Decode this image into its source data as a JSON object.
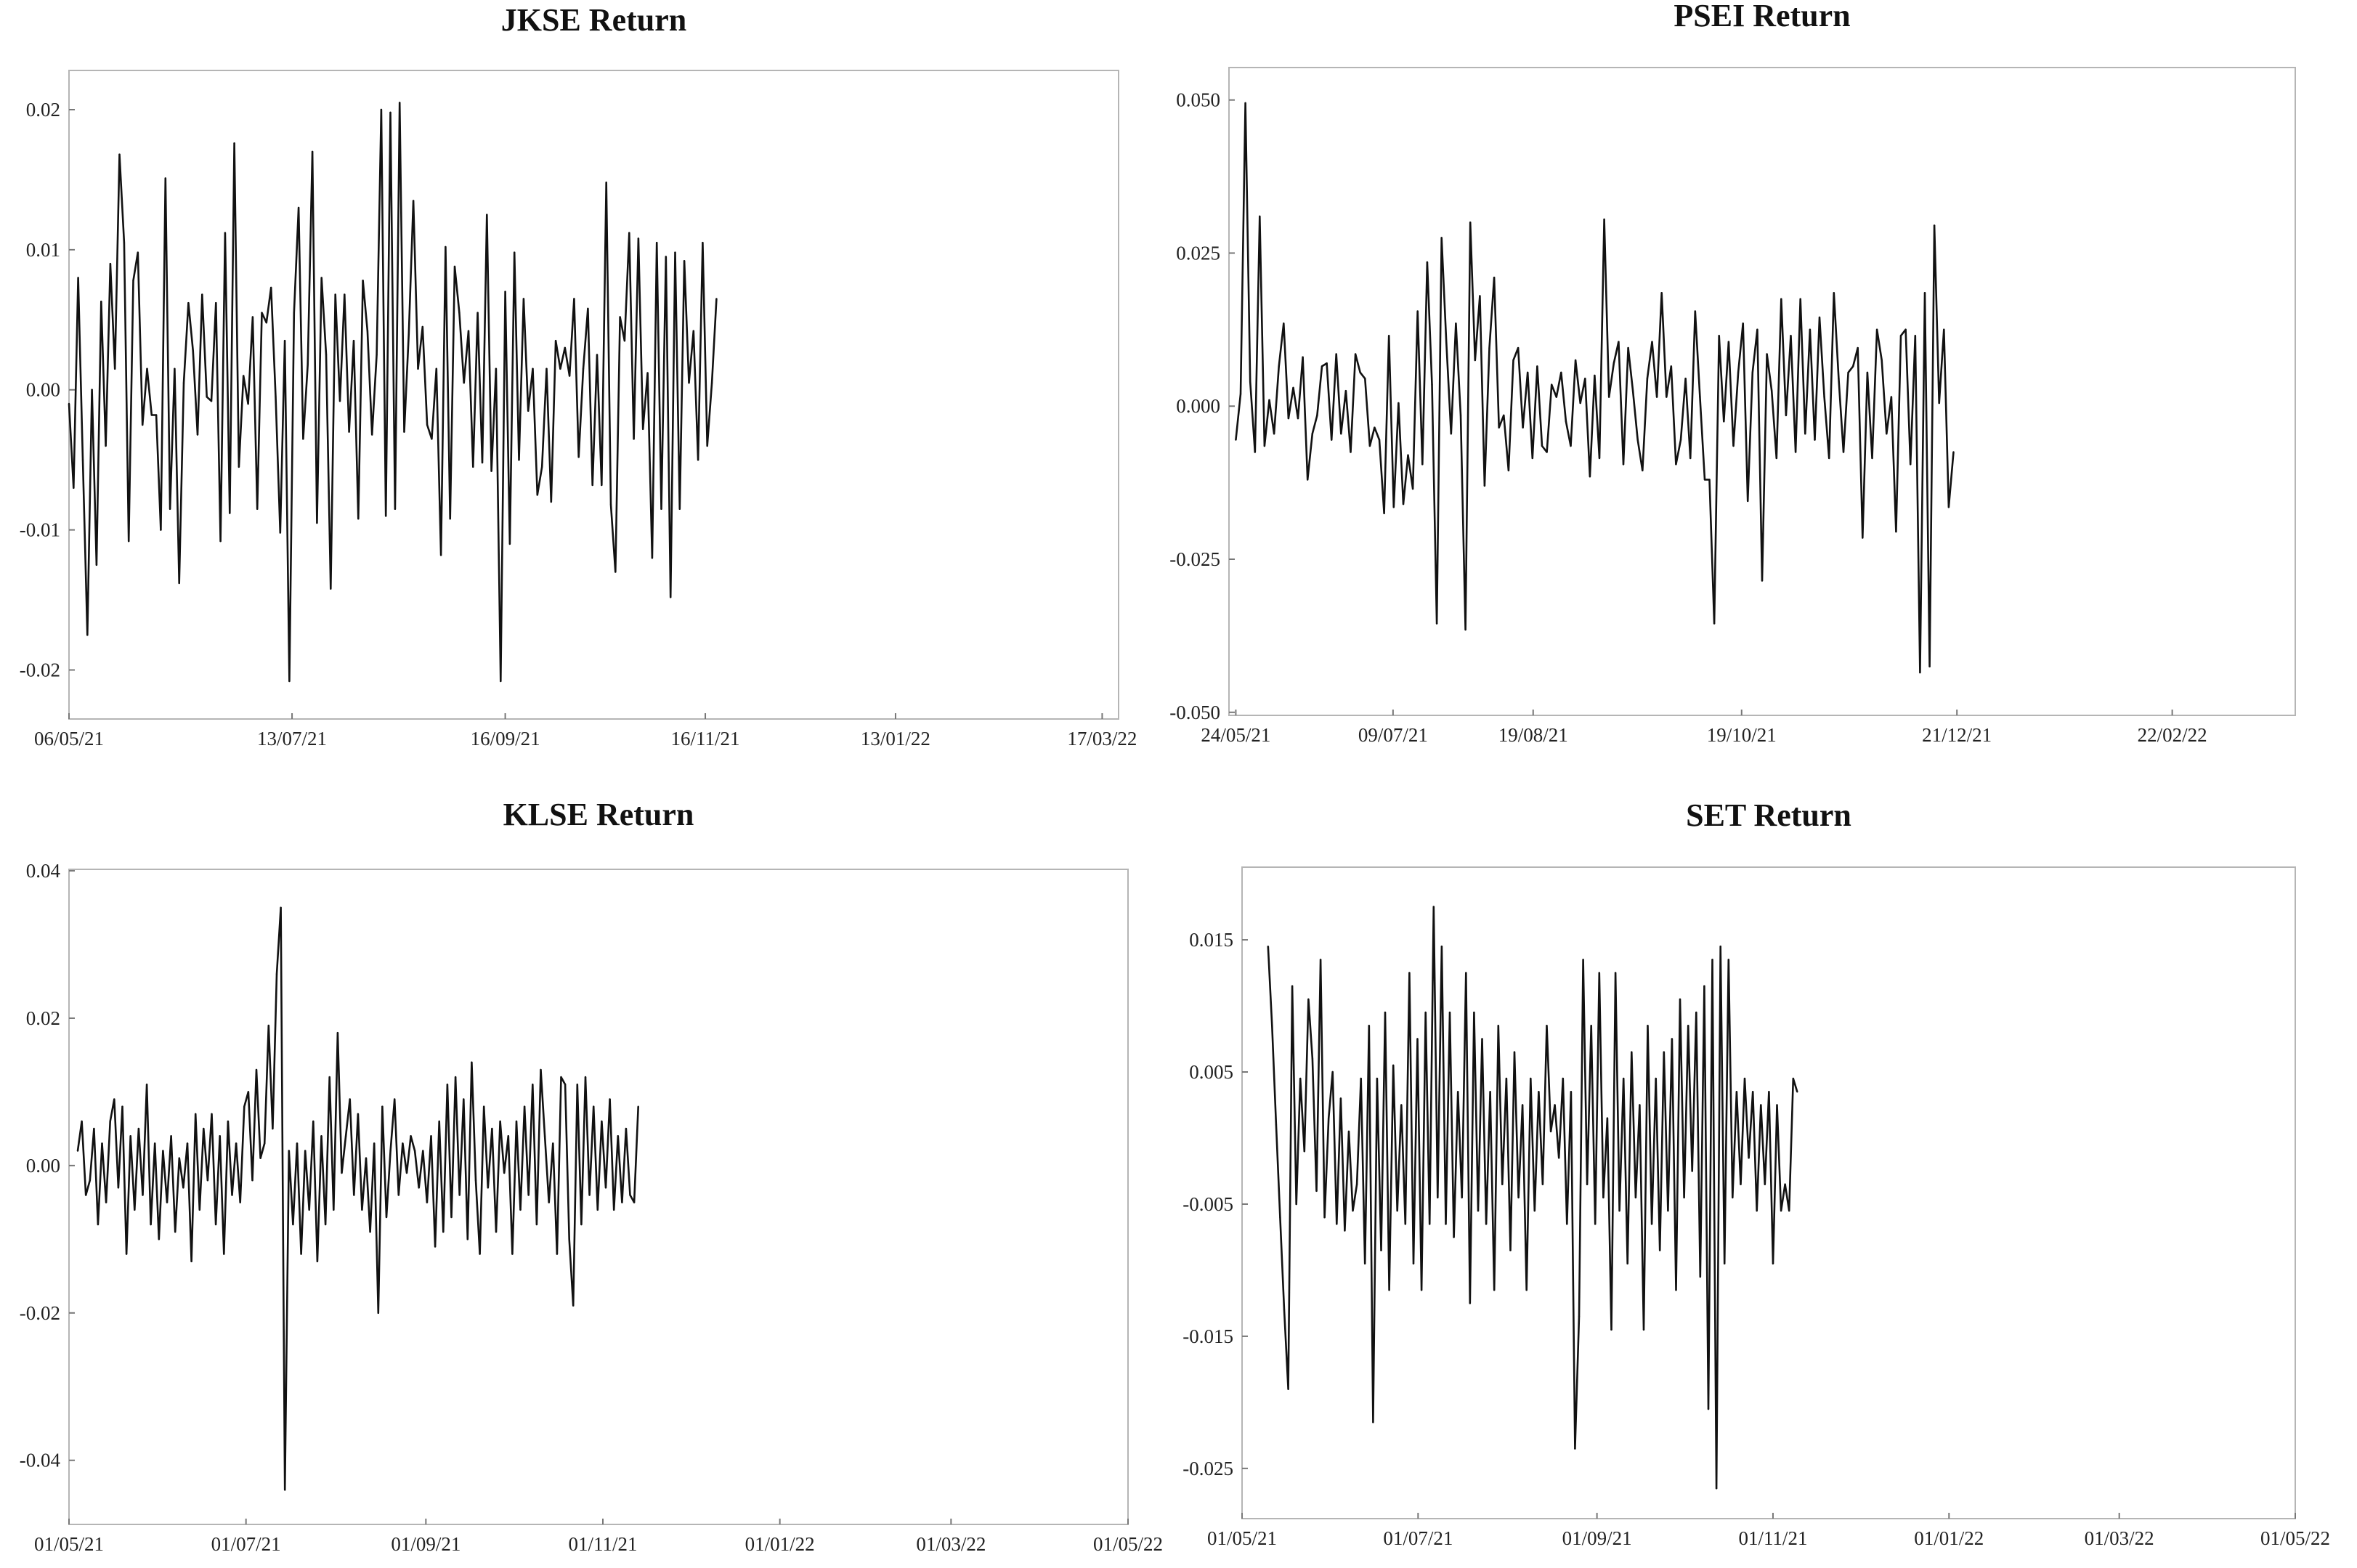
{
  "chart_data": [
    {
      "type": "line",
      "title": "JKSE Return",
      "xlabel": "",
      "ylabel": "",
      "x_range": [
        "2021-05-06",
        "2022-03-22"
      ],
      "xticks": [
        "06/05/21",
        "13/07/21",
        "16/09/21",
        "16/11/21",
        "13/01/22",
        "17/03/22"
      ],
      "xtick_dates": [
        "2021-05-06",
        "2021-07-13",
        "2021-09-16",
        "2021-11-16",
        "2022-01-13",
        "2022-03-17"
      ],
      "yticks": [
        "0.02",
        "0.01",
        "0.00",
        "-0.01",
        "-0.02"
      ],
      "ytick_values": [
        0.02,
        0.01,
        0.0,
        -0.01,
        -0.02
      ],
      "ylim": [
        -0.0235,
        0.0228
      ],
      "series": [
        {
          "start_date": "2021-05-06",
          "step_days": 1.4,
          "values": [
            -0.001,
            -0.007,
            0.008,
            -0.005,
            -0.0175,
            0.0,
            -0.0125,
            0.0063,
            -0.004,
            0.009,
            0.0015,
            0.0168,
            0.0105,
            -0.0108,
            0.0078,
            0.0098,
            -0.0025,
            0.0015,
            -0.0018,
            -0.0018,
            -0.01,
            0.0151,
            -0.0085,
            0.0015,
            -0.0138,
            0.0005,
            0.0062,
            0.0028,
            -0.0032,
            0.0068,
            -0.0005,
            -0.0008,
            0.0062,
            -0.0108,
            0.0112,
            -0.0088,
            0.0176,
            -0.0055,
            0.001,
            -0.001,
            0.0052,
            -0.0085,
            0.0055,
            0.0048,
            0.0073,
            -0.0005,
            -0.0102,
            0.0035,
            -0.0208,
            0.0055,
            0.013,
            -0.0035,
            0.0018,
            0.017,
            -0.0095,
            0.008,
            0.0025,
            -0.0142,
            0.0068,
            -0.0008,
            0.0068,
            -0.003,
            0.0035,
            -0.0092,
            0.0078,
            0.0042,
            -0.0032,
            0.0025,
            0.02,
            -0.009,
            0.0198,
            -0.0085,
            0.0205,
            -0.003,
            0.004,
            0.0135,
            0.0015,
            0.0045,
            -0.0025,
            -0.0035,
            0.0015,
            -0.0118,
            0.0102,
            -0.0092,
            0.0088,
            0.0055,
            0.0005,
            0.0042,
            -0.0055,
            0.0055,
            -0.0052,
            0.0125,
            -0.0058,
            0.0015,
            -0.0208,
            0.007,
            -0.011,
            0.0098,
            -0.005,
            0.0065,
            -0.0015,
            0.0015,
            -0.0075,
            -0.0055,
            0.0015,
            -0.008,
            0.0035,
            0.0015,
            0.003,
            0.001,
            0.0065,
            -0.0048,
            0.0015,
            0.0058,
            -0.0068,
            0.0025,
            -0.0068,
            0.0148,
            -0.0082,
            -0.013,
            0.0052,
            0.0035,
            0.0112,
            -0.0035,
            0.0108,
            -0.0028,
            0.0012,
            -0.012,
            0.0105,
            -0.0085,
            0.0095,
            -0.0148,
            0.0098,
            -0.0085,
            0.0092,
            0.0005,
            0.0042,
            -0.005,
            0.0105,
            -0.004,
            0.0005,
            0.0065
          ]
        }
      ]
    },
    {
      "type": "line",
      "title": "PSEI Return",
      "xlabel": "",
      "ylabel": "",
      "x_range": [
        "2021-05-22",
        "2022-03-30"
      ],
      "xticks": [
        "24/05/21",
        "09/07/21",
        "19/08/21",
        "19/10/21",
        "21/12/21",
        "22/02/22"
      ],
      "xtick_dates": [
        "2021-05-24",
        "2021-07-09",
        "2021-08-19",
        "2021-10-19",
        "2021-12-21",
        "2022-02-22"
      ],
      "yticks": [
        "0.050",
        "0.025",
        "0.000",
        "-0.025",
        "-0.050"
      ],
      "ytick_values": [
        0.05,
        0.025,
        0.0,
        -0.025,
        -0.05
      ],
      "ylim": [
        -0.0505,
        0.0553
      ],
      "series": [
        {
          "start_date": "2021-05-24",
          "step_days": 1.4,
          "values": [
            -0.0055,
            0.002,
            0.0495,
            0.004,
            -0.0075,
            0.031,
            -0.0065,
            0.001,
            -0.0045,
            0.0065,
            0.0135,
            -0.002,
            0.003,
            -0.002,
            0.008,
            -0.012,
            -0.0045,
            -0.0015,
            0.0065,
            0.007,
            -0.0055,
            0.0085,
            -0.0045,
            0.0025,
            -0.0075,
            0.0085,
            0.0055,
            0.0045,
            -0.0065,
            -0.0035,
            -0.0055,
            -0.0175,
            0.0115,
            -0.0165,
            0.0005,
            -0.016,
            -0.008,
            -0.0135,
            0.0155,
            -0.0095,
            0.0235,
            0.0035,
            -0.0355,
            0.0275,
            0.0105,
            -0.0045,
            0.0135,
            -0.0015,
            -0.0365,
            0.03,
            0.0075,
            0.018,
            -0.013,
            0.0095,
            0.021,
            -0.0035,
            -0.0015,
            -0.0105,
            0.0075,
            0.0095,
            -0.0035,
            0.0055,
            -0.0085,
            0.0065,
            -0.0065,
            -0.0075,
            0.0035,
            0.0015,
            0.0055,
            -0.0025,
            -0.0065,
            0.0075,
            0.0005,
            0.0045,
            -0.0115,
            0.005,
            -0.0085,
            0.0305,
            0.0015,
            0.007,
            0.0105,
            -0.0095,
            0.0095,
            0.0025,
            -0.0055,
            -0.0105,
            0.0045,
            0.0105,
            0.0015,
            0.0185,
            0.0015,
            0.0065,
            -0.0095,
            -0.0055,
            0.0045,
            -0.0085,
            0.0155,
            0.0015,
            -0.012,
            -0.012,
            -0.0355,
            0.0115,
            -0.0025,
            0.0105,
            -0.0065,
            0.0055,
            0.0135,
            -0.0155,
            0.0055,
            0.0125,
            -0.0285,
            0.0085,
            0.0025,
            -0.0085,
            0.0175,
            -0.0015,
            0.0115,
            -0.0075,
            0.0175,
            -0.0045,
            0.0125,
            -0.0055,
            0.0145,
            0.0015,
            -0.0085,
            0.0185,
            0.0045,
            -0.0075,
            0.0055,
            0.0065,
            0.0095,
            -0.0215,
            0.0055,
            -0.0085,
            0.0125,
            0.0075,
            -0.0045,
            0.0015,
            -0.0205,
            0.0115,
            0.0125,
            -0.0095,
            0.0115,
            -0.0435,
            0.0185,
            -0.0425,
            0.0295,
            0.0005,
            0.0125,
            -0.0165,
            -0.0075
          ]
        }
      ]
    },
    {
      "type": "line",
      "title": "KLSE Return",
      "xlabel": "",
      "ylabel": "",
      "x_range": [
        "2021-05-01",
        "2022-05-01"
      ],
      "xticks": [
        "01/05/21",
        "01/07/21",
        "01/09/21",
        "01/11/21",
        "01/01/22",
        "01/03/22",
        "01/05/22"
      ],
      "xtick_dates": [
        "2021-05-01",
        "2021-07-01",
        "2021-09-01",
        "2021-11-01",
        "2022-01-01",
        "2022-03-01",
        "2022-05-01"
      ],
      "yticks": [
        "0.04",
        "0.02",
        "0.00",
        "-0.02",
        "-0.04"
      ],
      "ytick_values": [
        0.04,
        0.02,
        0.0,
        -0.02,
        -0.04
      ],
      "ylim": [
        -0.0487,
        0.0402
      ],
      "series": [
        {
          "start_date": "2021-05-04",
          "step_days": 1.4,
          "values": [
            0.002,
            0.006,
            -0.004,
            -0.002,
            0.005,
            -0.008,
            0.003,
            -0.005,
            0.006,
            0.009,
            -0.003,
            0.008,
            -0.012,
            0.004,
            -0.006,
            0.005,
            -0.004,
            0.011,
            -0.008,
            0.003,
            -0.01,
            0.002,
            -0.005,
            0.004,
            -0.009,
            0.001,
            -0.003,
            0.003,
            -0.013,
            0.007,
            -0.006,
            0.005,
            -0.002,
            0.007,
            -0.008,
            0.004,
            -0.012,
            0.006,
            -0.004,
            0.003,
            -0.005,
            0.008,
            0.01,
            -0.002,
            0.013,
            0.001,
            0.003,
            0.019,
            0.005,
            0.026,
            0.035,
            -0.044,
            0.002,
            -0.008,
            0.003,
            -0.012,
            0.002,
            -0.006,
            0.006,
            -0.013,
            0.004,
            -0.008,
            0.012,
            -0.006,
            0.018,
            -0.001,
            0.004,
            0.009,
            -0.004,
            0.007,
            -0.006,
            0.001,
            -0.009,
            0.003,
            -0.02,
            0.008,
            -0.007,
            0.002,
            0.009,
            -0.004,
            0.003,
            -0.001,
            0.004,
            0.002,
            -0.003,
            0.002,
            -0.005,
            0.004,
            -0.011,
            0.006,
            -0.009,
            0.011,
            -0.007,
            0.012,
            -0.004,
            0.009,
            -0.01,
            0.014,
            -0.002,
            -0.012,
            0.008,
            -0.003,
            0.005,
            -0.009,
            0.006,
            -0.001,
            0.004,
            -0.012,
            0.006,
            -0.006,
            0.008,
            -0.004,
            0.011,
            -0.008,
            0.013,
            0.004,
            -0.005,
            0.003,
            -0.012,
            0.012,
            0.011,
            -0.01,
            -0.019,
            0.011,
            -0.008,
            0.012,
            -0.004,
            0.008,
            -0.006,
            0.006,
            -0.003,
            0.009,
            -0.006,
            0.004,
            -0.005,
            0.005,
            -0.004,
            -0.005,
            0.008
          ]
        }
      ]
    },
    {
      "type": "line",
      "title": "SET Return",
      "xlabel": "",
      "ylabel": "",
      "x_range": [
        "2021-05-01",
        "2022-05-01"
      ],
      "xticks": [
        "01/05/21",
        "01/07/21",
        "01/09/21",
        "01/11/21",
        "01/01/22",
        "01/03/22",
        "01/05/22"
      ],
      "xtick_dates": [
        "2021-05-01",
        "2021-07-01",
        "2021-09-01",
        "2021-11-01",
        "2022-01-01",
        "2022-03-01",
        "2022-05-01"
      ],
      "yticks": [
        "0.015",
        "0.005",
        "-0.005",
        "-0.015",
        "-0.025"
      ],
      "ytick_values": [
        0.015,
        0.005,
        -0.005,
        -0.015,
        -0.025
      ],
      "ylim": [
        -0.0288,
        0.0205
      ],
      "series": [
        {
          "start_date": "2021-05-10",
          "step_days": 1.4,
          "values": [
            0.0145,
            0.0085,
            0.001,
            -0.006,
            -0.013,
            -0.019,
            0.0115,
            -0.005,
            0.0045,
            -0.001,
            0.0105,
            0.006,
            -0.004,
            0.0135,
            -0.006,
            0.0015,
            0.005,
            -0.0065,
            0.003,
            -0.007,
            0.0005,
            -0.0055,
            -0.0035,
            0.0045,
            -0.0095,
            0.0085,
            -0.0215,
            0.0045,
            -0.0085,
            0.0095,
            -0.0115,
            0.0055,
            -0.0055,
            0.0025,
            -0.0065,
            0.0125,
            -0.0095,
            0.0075,
            -0.0115,
            0.0095,
            -0.0065,
            0.0175,
            -0.0045,
            0.0145,
            -0.0065,
            0.0095,
            -0.0075,
            0.0035,
            -0.0045,
            0.0125,
            -0.0125,
            0.0095,
            -0.0055,
            0.0075,
            -0.0065,
            0.0035,
            -0.0115,
            0.0085,
            -0.0035,
            0.0045,
            -0.0085,
            0.0065,
            -0.0045,
            0.0025,
            -0.0115,
            0.0045,
            -0.0055,
            0.0035,
            -0.0035,
            0.0085,
            0.0005,
            0.0025,
            -0.0015,
            0.0045,
            -0.0065,
            0.0035,
            -0.0235,
            -0.0135,
            0.0135,
            -0.0035,
            0.0085,
            -0.0065,
            0.0125,
            -0.0045,
            0.0015,
            -0.0145,
            0.0125,
            -0.0055,
            0.0045,
            -0.0095,
            0.0065,
            -0.0045,
            0.0025,
            -0.0145,
            0.0085,
            -0.0065,
            0.0045,
            -0.0085,
            0.0065,
            -0.0055,
            0.0075,
            -0.0115,
            0.0105,
            -0.0045,
            0.0085,
            -0.0025,
            0.0095,
            -0.0105,
            0.0115,
            -0.0205,
            0.0135,
            -0.0265,
            0.0145,
            -0.0095,
            0.0135,
            -0.0045,
            0.0035,
            -0.0035,
            0.0045,
            -0.0015,
            0.0035,
            -0.0055,
            0.0025,
            -0.0035,
            0.0035,
            -0.0095,
            0.0025,
            -0.0055,
            -0.0035,
            -0.0055,
            0.0045,
            0.0035
          ]
        }
      ]
    }
  ]
}
